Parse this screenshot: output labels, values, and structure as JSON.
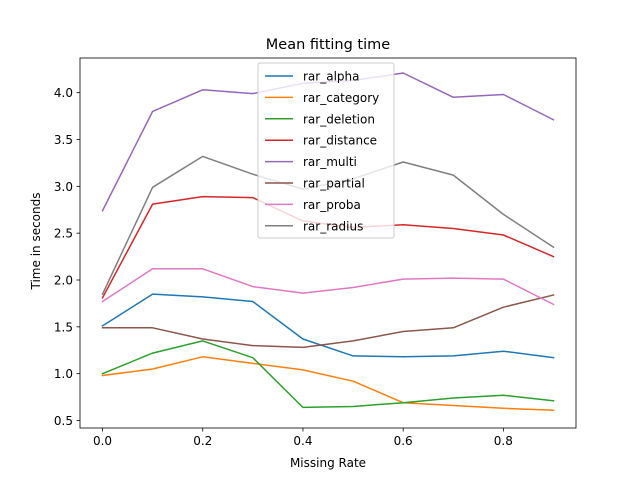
{
  "chart_data": {
    "type": "line",
    "title": "Mean fitting time",
    "xlabel": "Missing Rate",
    "ylabel": "Time in seconds",
    "xlim": [
      -0.045,
      0.945
    ],
    "ylim": [
      0.42,
      4.37
    ],
    "x_ticks": [
      0.0,
      0.2,
      0.4,
      0.6,
      0.8
    ],
    "x_tick_labels": [
      "0.0",
      "0.2",
      "0.4",
      "0.6",
      "0.8"
    ],
    "y_ticks": [
      0.5,
      1.0,
      1.5,
      2.0,
      2.5,
      3.0,
      3.5,
      4.0
    ],
    "y_tick_labels": [
      "0.5",
      "1.0",
      "1.5",
      "2.0",
      "2.5",
      "3.0",
      "3.5",
      "4.0"
    ],
    "grid": false,
    "legend_position": "top-center",
    "x": [
      0.0,
      0.1,
      0.2,
      0.3,
      0.4,
      0.5,
      0.6,
      0.7,
      0.8,
      0.9
    ],
    "series": [
      {
        "name": "rar_alpha",
        "color": "#1f77b4",
        "values": [
          1.51,
          1.85,
          1.82,
          1.77,
          1.37,
          1.19,
          1.18,
          1.19,
          1.24,
          1.17
        ]
      },
      {
        "name": "rar_category",
        "color": "#ff7f0e",
        "values": [
          0.98,
          1.05,
          1.18,
          1.11,
          1.04,
          0.92,
          0.69,
          0.66,
          0.63,
          0.61
        ]
      },
      {
        "name": "rar_deletion",
        "color": "#2ca02c",
        "values": [
          1.0,
          1.22,
          1.35,
          1.17,
          0.64,
          0.65,
          0.69,
          0.74,
          0.77,
          0.71
        ]
      },
      {
        "name": "rar_distance",
        "color": "#d62728",
        "values": [
          1.81,
          2.81,
          2.89,
          2.88,
          2.63,
          2.56,
          2.59,
          2.55,
          2.48,
          2.25
        ]
      },
      {
        "name": "rar_multi",
        "color": "#9467bd",
        "values": [
          2.74,
          3.8,
          4.03,
          3.99,
          4.1,
          4.13,
          4.21,
          3.95,
          3.98,
          3.71
        ]
      },
      {
        "name": "rar_partial",
        "color": "#8c564b",
        "values": [
          1.49,
          1.49,
          1.37,
          1.3,
          1.28,
          1.35,
          1.45,
          1.49,
          1.71,
          1.84
        ]
      },
      {
        "name": "rar_proba",
        "color": "#e377c2",
        "values": [
          1.77,
          2.12,
          2.12,
          1.93,
          1.86,
          1.92,
          2.01,
          2.02,
          2.01,
          1.74
        ]
      },
      {
        "name": "rar_radius",
        "color": "#7f7f7f",
        "values": [
          1.85,
          2.99,
          3.32,
          3.13,
          2.97,
          3.08,
          3.26,
          3.12,
          2.7,
          2.35
        ]
      }
    ]
  }
}
